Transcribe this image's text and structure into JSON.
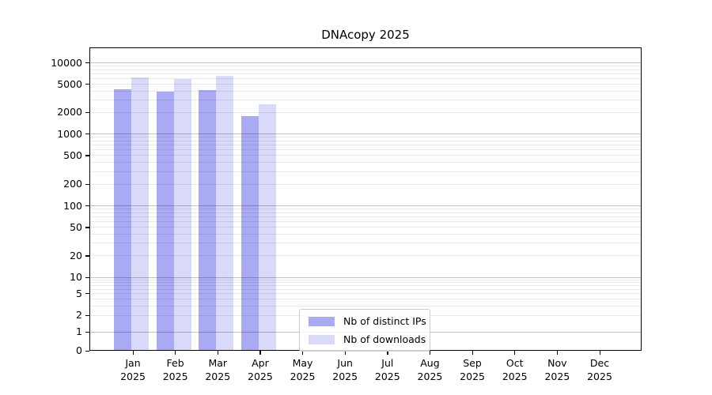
{
  "chart_data": {
    "type": "bar",
    "title": "DNAcopy 2025",
    "x_categories": [
      "Jan",
      "Feb",
      "Mar",
      "Apr",
      "May",
      "Jun",
      "Jul",
      "Aug",
      "Sep",
      "Oct",
      "Nov",
      "Dec"
    ],
    "x_category_year": "2025",
    "series": [
      {
        "name": "Nb of distinct IPs",
        "color": "#a9a9f4",
        "values": [
          4200,
          3900,
          4100,
          1800,
          0,
          0,
          0,
          0,
          0,
          0,
          0,
          0
        ]
      },
      {
        "name": "Nb of downloads",
        "color": "#d9d9fa",
        "values": [
          6300,
          5900,
          6600,
          2600,
          0,
          0,
          0,
          0,
          0,
          0,
          0,
          0
        ]
      }
    ],
    "y_scale": "log",
    "y_ticks": [
      0,
      1,
      2,
      5,
      10,
      20,
      50,
      100,
      200,
      500,
      1000,
      2000,
      5000,
      10000
    ],
    "ylim": [
      0,
      16000
    ],
    "grid": true,
    "legend_position": "bottom-center-inside"
  }
}
